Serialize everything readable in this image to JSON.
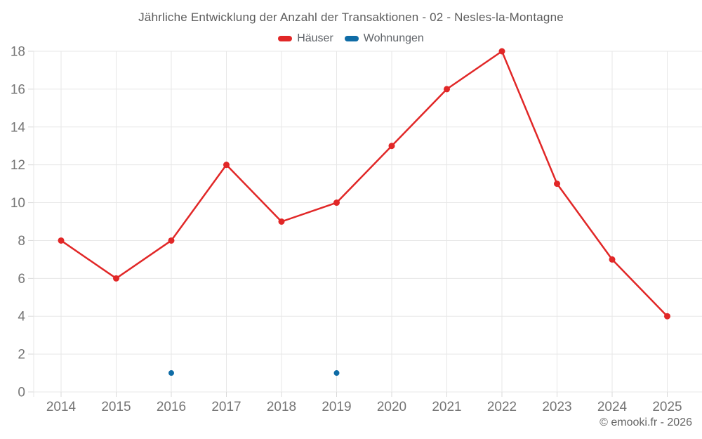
{
  "header": {
    "title": "Jährliche Entwicklung der Anzahl der Transaktionen - 02 - Nesles-la-Montagne"
  },
  "legend": {
    "items": [
      {
        "label": "Häuser",
        "color": "#e12727"
      },
      {
        "label": "Wohnungen",
        "color": "#0f6ca6"
      }
    ]
  },
  "footer": {
    "attribution": "© emooki.fr - 2026"
  },
  "chart_data": {
    "type": "line",
    "title": "Jährliche Entwicklung der Anzahl der Transaktionen - 02 - Nesles-la-Montagne",
    "categories": [
      "2014",
      "2015",
      "2016",
      "2017",
      "2018",
      "2019",
      "2020",
      "2021",
      "2022",
      "2023",
      "2024",
      "2025"
    ],
    "series": [
      {
        "name": "Häuser",
        "color": "#e12727",
        "show_line": true,
        "point_radius": 4.5,
        "values": [
          8,
          6,
          8,
          12,
          9,
          10,
          13,
          16,
          18,
          11,
          7,
          4
        ]
      },
      {
        "name": "Wohnungen",
        "color": "#0f6ca6",
        "show_line": false,
        "point_radius": 4,
        "values": [
          null,
          null,
          1,
          null,
          null,
          1,
          null,
          null,
          null,
          null,
          null,
          null
        ]
      }
    ],
    "xlabel": "",
    "ylabel": "",
    "ylim": [
      0,
      18
    ],
    "ytick_step": 2,
    "grid": true,
    "legend_position": "top",
    "colors": {
      "grid": "#e7e7e7",
      "tick": "#d9d9d9",
      "tick_label": "#757575"
    }
  }
}
